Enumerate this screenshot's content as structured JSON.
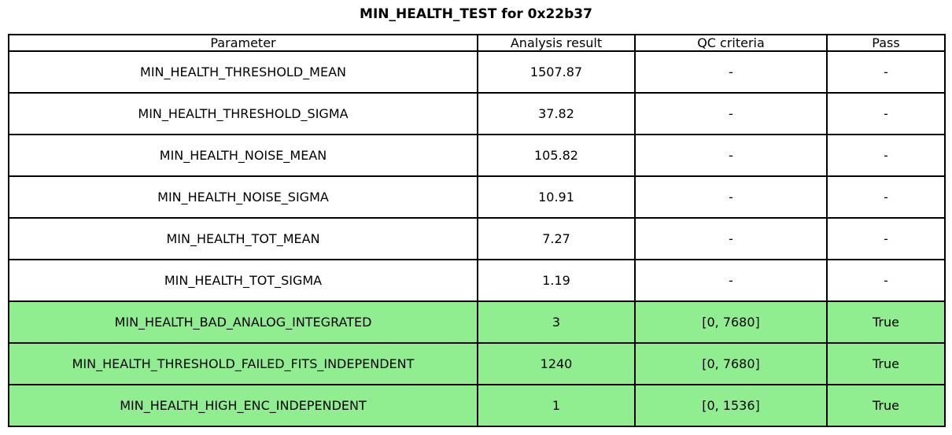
{
  "title": "MIN_HEALTH_TEST for 0x22b37",
  "chart_data": {
    "type": "table",
    "title": "MIN_HEALTH_TEST for 0x22b37",
    "columns": [
      "Parameter",
      "Analysis result",
      "QC criteria",
      "Pass"
    ],
    "rows": [
      [
        "MIN_HEALTH_THRESHOLD_MEAN",
        "1507.87",
        "-",
        "-"
      ],
      [
        "MIN_HEALTH_THRESHOLD_SIGMA",
        "37.82",
        "-",
        "-"
      ],
      [
        "MIN_HEALTH_NOISE_MEAN",
        "105.82",
        "-",
        "-"
      ],
      [
        "MIN_HEALTH_NOISE_SIGMA",
        "10.91",
        "-",
        "-"
      ],
      [
        "MIN_HEALTH_TOT_MEAN",
        "7.27",
        "-",
        "-"
      ],
      [
        "MIN_HEALTH_TOT_SIGMA",
        "1.19",
        "-",
        "-"
      ],
      [
        "MIN_HEALTH_BAD_ANALOG_INTEGRATED",
        "3",
        "[0, 7680]",
        "True"
      ],
      [
        "MIN_HEALTH_THRESHOLD_FAILED_FITS_INDEPENDENT",
        "1240",
        "[0, 7680]",
        "True"
      ],
      [
        "MIN_HEALTH_HIGH_ENC_INDEPENDENT",
        "1",
        "[0, 1536]",
        "True"
      ]
    ],
    "highlighted_row_indices": [
      6,
      7,
      8
    ],
    "legend_position": "none",
    "grid": true
  },
  "colors": {
    "pass_row_background": "#90EE90",
    "border": "#000000",
    "text": "#000000",
    "page_background": "#ffffff"
  }
}
